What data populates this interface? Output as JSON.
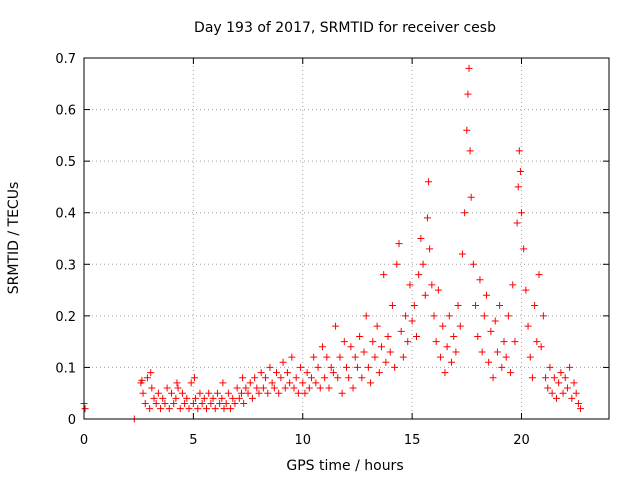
{
  "chart_data": {
    "type": "scatter",
    "title": "Day 193 of 2017, SRMTID for receiver cesb",
    "xlabel": "GPS time / hours",
    "ylabel": "SRMTID / TECUs",
    "xlim": [
      0,
      24
    ],
    "ylim": [
      0,
      0.7
    ],
    "xticks": [
      0,
      5,
      10,
      15,
      20
    ],
    "xtick_labels": [
      "0",
      "5",
      "10",
      "15",
      "20"
    ],
    "yticks": [
      0,
      0.1,
      0.2,
      0.3,
      0.4,
      0.5,
      0.6,
      0.7
    ],
    "ytick_labels": [
      "0",
      "0.1",
      "0.2",
      "0.3",
      "0.4",
      "0.5",
      "0.6",
      "0.7"
    ],
    "grid": true,
    "marker": "+",
    "color": "#ff0000",
    "series": [
      {
        "name": "SRMTID",
        "points": [
          [
            0.0,
            0.03
          ],
          [
            0.05,
            0.02
          ],
          [
            2.3,
            0.0
          ],
          [
            2.6,
            0.07
          ],
          [
            2.7,
            0.05
          ],
          [
            2.8,
            0.03
          ],
          [
            2.9,
            0.08
          ],
          [
            3.0,
            0.02
          ],
          [
            3.1,
            0.06
          ],
          [
            3.2,
            0.04
          ],
          [
            3.3,
            0.03
          ],
          [
            3.4,
            0.05
          ],
          [
            3.5,
            0.02
          ],
          [
            3.6,
            0.04
          ],
          [
            3.7,
            0.03
          ],
          [
            3.8,
            0.06
          ],
          [
            3.9,
            0.02
          ],
          [
            4.0,
            0.05
          ],
          [
            4.1,
            0.03
          ],
          [
            4.2,
            0.04
          ],
          [
            4.3,
            0.06
          ],
          [
            4.4,
            0.02
          ],
          [
            4.5,
            0.05
          ],
          [
            4.6,
            0.03
          ],
          [
            4.7,
            0.04
          ],
          [
            4.8,
            0.02
          ],
          [
            4.9,
            0.07
          ],
          [
            5.0,
            0.03
          ],
          [
            5.1,
            0.04
          ],
          [
            5.2,
            0.02
          ],
          [
            5.3,
            0.05
          ],
          [
            5.4,
            0.03
          ],
          [
            5.5,
            0.04
          ],
          [
            5.6,
            0.02
          ],
          [
            5.7,
            0.05
          ],
          [
            5.8,
            0.03
          ],
          [
            5.9,
            0.04
          ],
          [
            6.0,
            0.02
          ],
          [
            6.1,
            0.05
          ],
          [
            6.2,
            0.03
          ],
          [
            6.3,
            0.04
          ],
          [
            6.4,
            0.02
          ],
          [
            6.5,
            0.03
          ],
          [
            6.6,
            0.05
          ],
          [
            6.7,
            0.02
          ],
          [
            6.8,
            0.04
          ],
          [
            6.9,
            0.03
          ],
          [
            7.0,
            0.06
          ],
          [
            7.1,
            0.04
          ],
          [
            7.2,
            0.05
          ],
          [
            7.3,
            0.03
          ],
          [
            7.4,
            0.06
          ],
          [
            2.65,
            0.075
          ],
          [
            3.05,
            0.09
          ],
          [
            4.25,
            0.07
          ],
          [
            5.05,
            0.08
          ],
          [
            6.35,
            0.07
          ],
          [
            7.25,
            0.08
          ],
          [
            7.5,
            0.05
          ],
          [
            7.6,
            0.07
          ],
          [
            7.7,
            0.04
          ],
          [
            7.8,
            0.08
          ],
          [
            7.9,
            0.06
          ],
          [
            8.0,
            0.05
          ],
          [
            8.1,
            0.09
          ],
          [
            8.2,
            0.06
          ],
          [
            8.3,
            0.08
          ],
          [
            8.4,
            0.05
          ],
          [
            8.5,
            0.1
          ],
          [
            8.6,
            0.07
          ],
          [
            8.7,
            0.06
          ],
          [
            8.8,
            0.09
          ],
          [
            8.9,
            0.05
          ],
          [
            9.0,
            0.08
          ],
          [
            9.1,
            0.11
          ],
          [
            9.2,
            0.06
          ],
          [
            9.3,
            0.09
          ],
          [
            9.4,
            0.07
          ],
          [
            9.5,
            0.12
          ],
          [
            9.6,
            0.06
          ],
          [
            9.7,
            0.08
          ],
          [
            9.8,
            0.05
          ],
          [
            9.9,
            0.1
          ],
          [
            10.0,
            0.07
          ],
          [
            10.1,
            0.05
          ],
          [
            10.2,
            0.09
          ],
          [
            10.3,
            0.06
          ],
          [
            10.4,
            0.08
          ],
          [
            10.5,
            0.12
          ],
          [
            10.6,
            0.07
          ],
          [
            10.7,
            0.1
          ],
          [
            10.8,
            0.06
          ],
          [
            10.9,
            0.14
          ],
          [
            11.0,
            0.08
          ],
          [
            11.1,
            0.12
          ],
          [
            11.2,
            0.06
          ],
          [
            11.3,
            0.1
          ],
          [
            11.4,
            0.09
          ],
          [
            11.5,
            0.18
          ],
          [
            11.6,
            0.08
          ],
          [
            11.7,
            0.12
          ],
          [
            11.8,
            0.05
          ],
          [
            11.9,
            0.15
          ],
          [
            12.0,
            0.1
          ],
          [
            12.1,
            0.08
          ],
          [
            12.2,
            0.14
          ],
          [
            12.3,
            0.06
          ],
          [
            12.4,
            0.12
          ],
          [
            12.5,
            0.1
          ],
          [
            12.6,
            0.16
          ],
          [
            12.7,
            0.08
          ],
          [
            12.8,
            0.13
          ],
          [
            12.9,
            0.2
          ],
          [
            13.0,
            0.1
          ],
          [
            13.1,
            0.07
          ],
          [
            13.2,
            0.15
          ],
          [
            13.3,
            0.12
          ],
          [
            13.4,
            0.18
          ],
          [
            13.5,
            0.09
          ],
          [
            13.6,
            0.14
          ],
          [
            13.7,
            0.28
          ],
          [
            13.8,
            0.11
          ],
          [
            13.9,
            0.16
          ],
          [
            14.0,
            0.13
          ],
          [
            14.1,
            0.22
          ],
          [
            14.2,
            0.1
          ],
          [
            14.3,
            0.3
          ],
          [
            14.4,
            0.34
          ],
          [
            14.5,
            0.17
          ],
          [
            14.6,
            0.12
          ],
          [
            14.7,
            0.2
          ],
          [
            14.8,
            0.15
          ],
          [
            14.9,
            0.26
          ],
          [
            15.0,
            0.19
          ],
          [
            15.1,
            0.22
          ],
          [
            15.2,
            0.16
          ],
          [
            15.3,
            0.28
          ],
          [
            15.4,
            0.35
          ],
          [
            15.5,
            0.3
          ],
          [
            15.6,
            0.24
          ],
          [
            15.7,
            0.39
          ],
          [
            15.75,
            0.46
          ],
          [
            15.8,
            0.33
          ],
          [
            15.9,
            0.26
          ],
          [
            16.0,
            0.2
          ],
          [
            16.1,
            0.15
          ],
          [
            16.2,
            0.25
          ],
          [
            16.3,
            0.12
          ],
          [
            16.4,
            0.18
          ],
          [
            16.5,
            0.09
          ],
          [
            16.6,
            0.14
          ],
          [
            16.7,
            0.2
          ],
          [
            16.8,
            0.11
          ],
          [
            16.9,
            0.16
          ],
          [
            17.0,
            0.13
          ],
          [
            17.1,
            0.22
          ],
          [
            17.2,
            0.18
          ],
          [
            17.3,
            0.32
          ],
          [
            17.4,
            0.4
          ],
          [
            17.5,
            0.56
          ],
          [
            17.55,
            0.63
          ],
          [
            17.6,
            0.68
          ],
          [
            17.65,
            0.52
          ],
          [
            17.7,
            0.43
          ],
          [
            17.8,
            0.3
          ],
          [
            17.9,
            0.22
          ],
          [
            18.0,
            0.16
          ],
          [
            18.1,
            0.27
          ],
          [
            18.2,
            0.13
          ],
          [
            18.3,
            0.2
          ],
          [
            18.4,
            0.24
          ],
          [
            18.5,
            0.11
          ],
          [
            18.6,
            0.17
          ],
          [
            18.7,
            0.08
          ],
          [
            18.8,
            0.19
          ],
          [
            18.9,
            0.13
          ],
          [
            19.0,
            0.22
          ],
          [
            19.1,
            0.1
          ],
          [
            19.2,
            0.15
          ],
          [
            19.3,
            0.12
          ],
          [
            19.4,
            0.2
          ],
          [
            19.5,
            0.09
          ],
          [
            19.6,
            0.26
          ],
          [
            19.7,
            0.15
          ],
          [
            19.8,
            0.38
          ],
          [
            19.85,
            0.45
          ],
          [
            19.9,
            0.52
          ],
          [
            19.95,
            0.48
          ],
          [
            20.0,
            0.4
          ],
          [
            20.1,
            0.33
          ],
          [
            20.2,
            0.25
          ],
          [
            20.3,
            0.18
          ],
          [
            20.4,
            0.12
          ],
          [
            20.5,
            0.08
          ],
          [
            20.6,
            0.22
          ],
          [
            20.7,
            0.15
          ],
          [
            20.8,
            0.28
          ],
          [
            20.9,
            0.14
          ],
          [
            21.0,
            0.2
          ],
          [
            21.1,
            0.08
          ],
          [
            21.2,
            0.06
          ],
          [
            21.3,
            0.1
          ],
          [
            21.4,
            0.05
          ],
          [
            21.5,
            0.08
          ],
          [
            21.6,
            0.04
          ],
          [
            21.7,
            0.07
          ],
          [
            21.8,
            0.09
          ],
          [
            21.9,
            0.05
          ],
          [
            22.0,
            0.08
          ],
          [
            22.1,
            0.06
          ],
          [
            22.2,
            0.1
          ],
          [
            22.3,
            0.04
          ],
          [
            22.4,
            0.07
          ],
          [
            22.5,
            0.05
          ],
          [
            22.6,
            0.03
          ],
          [
            22.7,
            0.02
          ]
        ]
      }
    ]
  }
}
